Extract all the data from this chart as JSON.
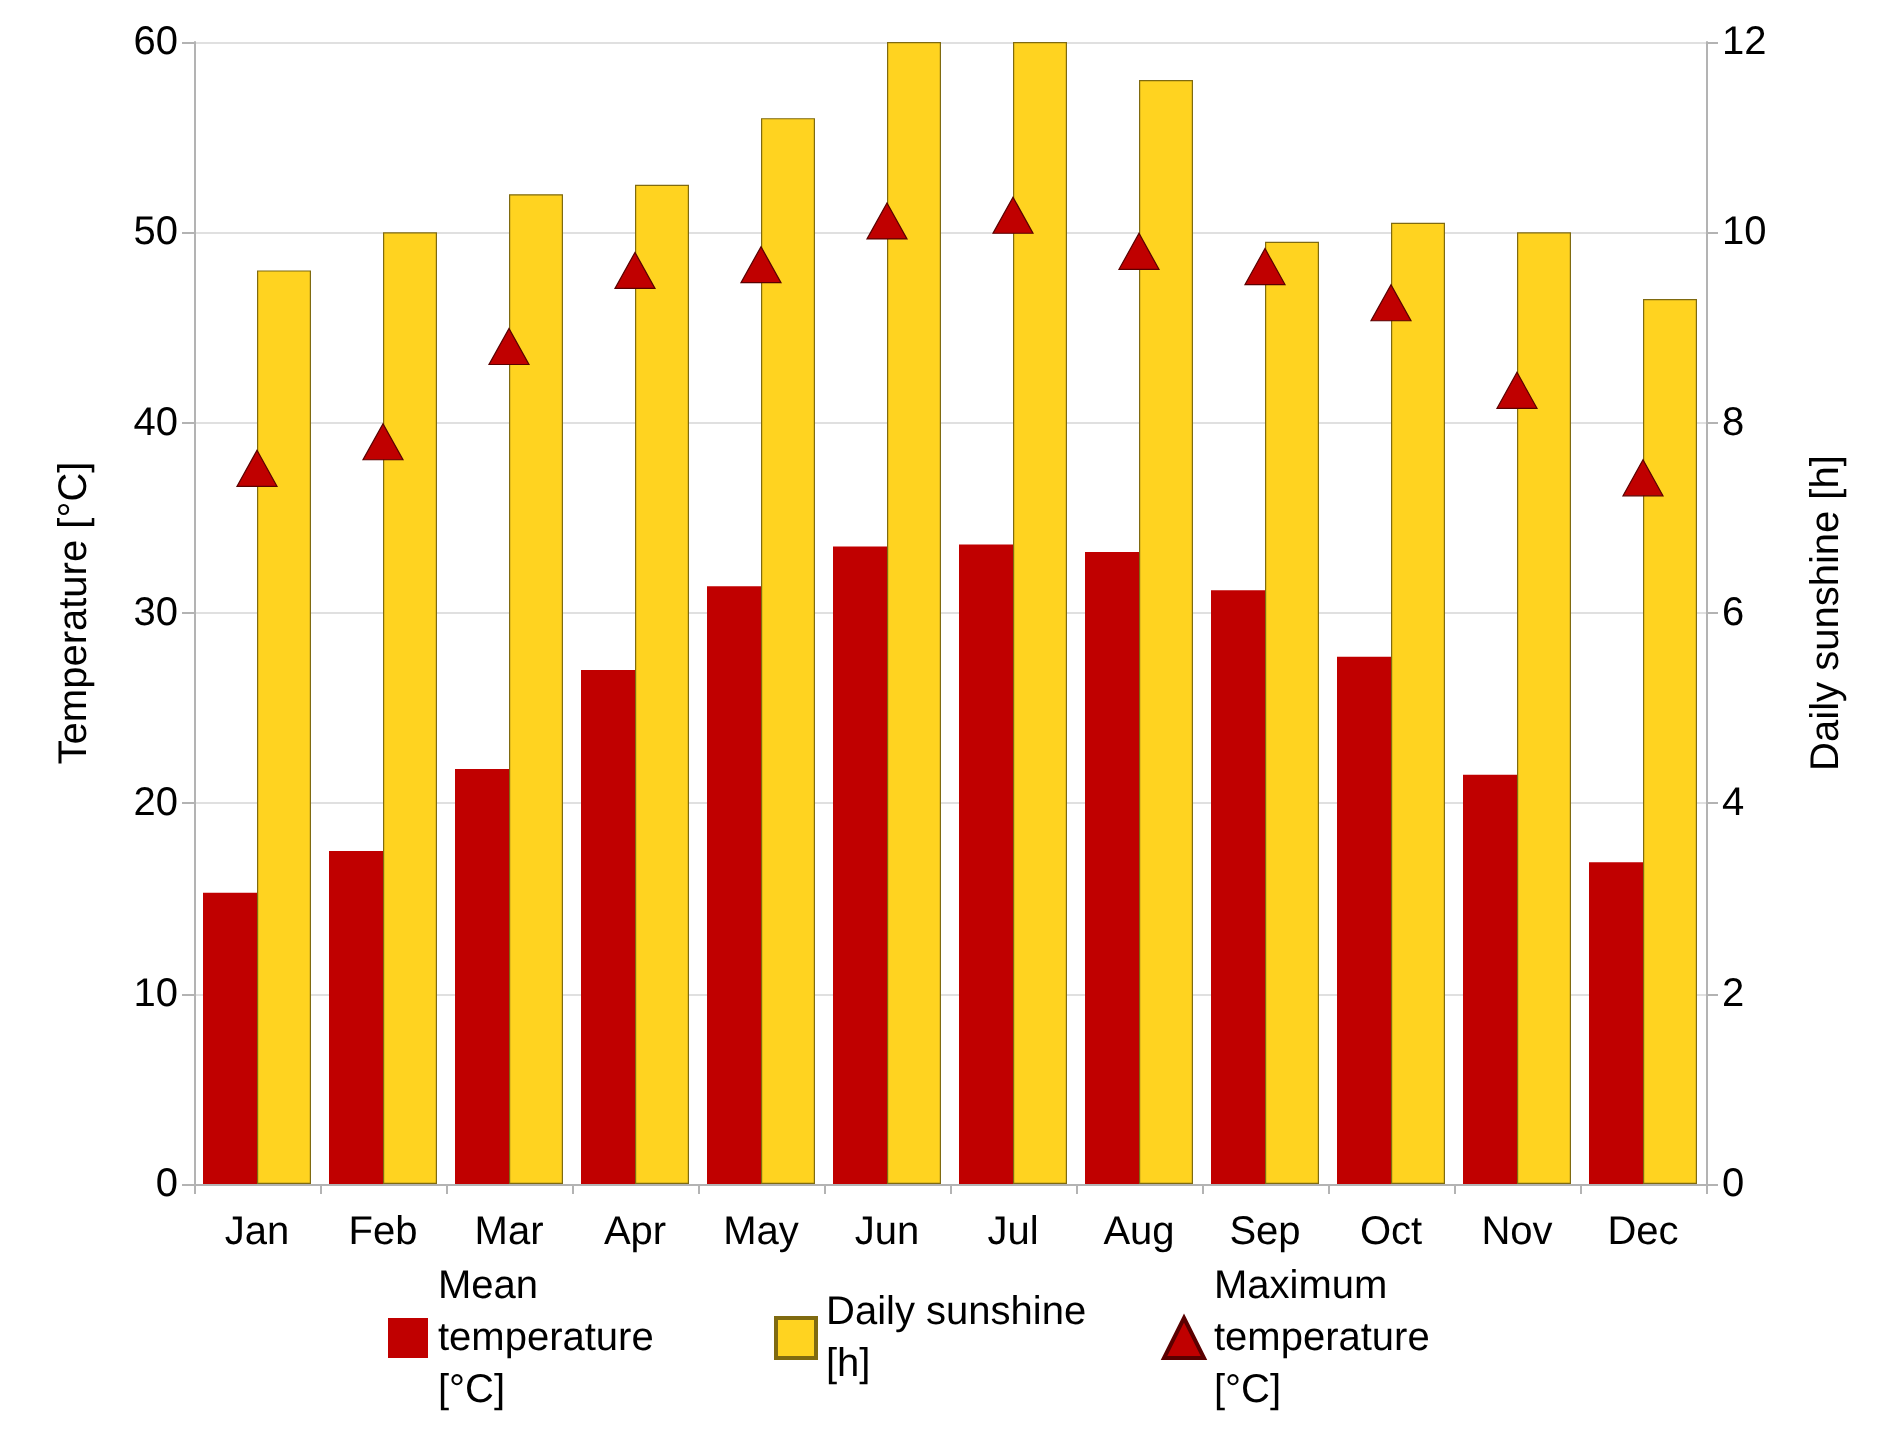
{
  "chart_data": {
    "type": "bar",
    "categories": [
      "Jan",
      "Feb",
      "Mar",
      "Apr",
      "May",
      "Jun",
      "Jul",
      "Aug",
      "Sep",
      "Oct",
      "Nov",
      "Dec"
    ],
    "ylabel": "Temperature [°C]",
    "y2label": "Daily sunshine [h]",
    "ylim": [
      0,
      60
    ],
    "yticks": [
      0,
      10,
      20,
      30,
      40,
      50,
      60
    ],
    "y2lim": [
      0,
      12
    ],
    "y2ticks": [
      0,
      2,
      4,
      6,
      8,
      10,
      12
    ],
    "grid": "y",
    "legend": "bottom",
    "series": [
      {
        "name": "Mean temperature [°C]",
        "color": "#c00000",
        "values": [
          15.3,
          17.5,
          21.8,
          27.0,
          31.4,
          33.5,
          33.6,
          33.2,
          31.2,
          27.7,
          21.5,
          16.9
        ]
      },
      {
        "name": "Daily sunshine [h]",
        "axis": "y2",
        "color": "#ffd320",
        "values": [
          9.6,
          10.0,
          10.4,
          10.5,
          11.2,
          12.0,
          12.0,
          11.6,
          9.9,
          10.1,
          10.0,
          9.3
        ]
      },
      {
        "name": "Maximum temperature [°C]",
        "type": "scatter",
        "marker": "triangle",
        "color": "#c00000",
        "x": [
          "Jan",
          "Feb",
          "Mar",
          "Apr",
          "May",
          "Jun",
          "Jul",
          "Aug",
          "Sep",
          "Oct",
          "Nov",
          "Dec"
        ],
        "values": [
          37.6,
          39.0,
          44.0,
          48.0,
          48.3,
          50.6,
          50.9,
          49.0,
          48.2,
          46.3,
          41.7,
          37.1
        ]
      }
    ]
  }
}
